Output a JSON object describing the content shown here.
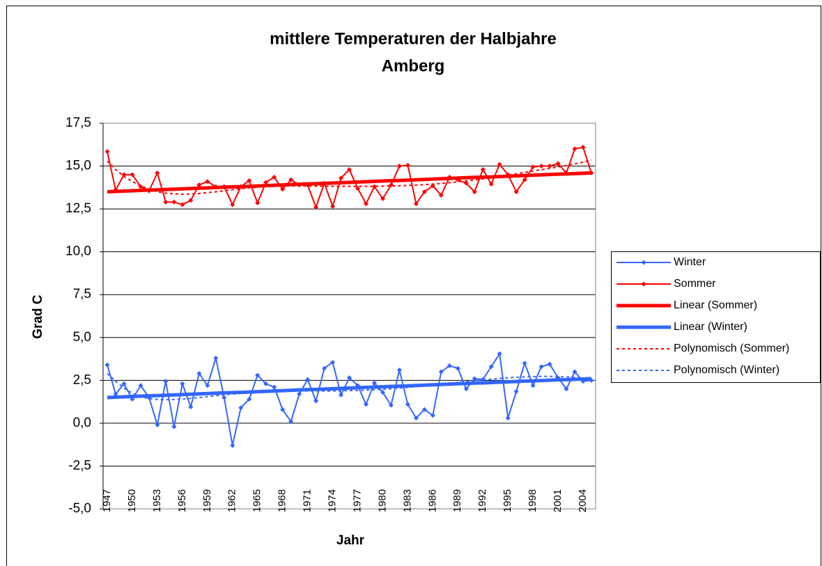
{
  "chart_data": {
    "type": "line",
    "title": "mittlere Temperaturen der Halbjahre",
    "subtitle": "Amberg",
    "x_label": "Jahr",
    "y_label": "Grad C",
    "categories": [
      "1947",
      null,
      null,
      "1950",
      null,
      null,
      "1953",
      null,
      null,
      "1956",
      null,
      null,
      "1959",
      null,
      null,
      "1962",
      null,
      null,
      "1965",
      null,
      null,
      "1968",
      null,
      null,
      "1971",
      null,
      null,
      "1974",
      null,
      null,
      "1977",
      null,
      null,
      "1980",
      null,
      null,
      "1983",
      null,
      null,
      "1986",
      null,
      null,
      "1989",
      null,
      null,
      "1992",
      null,
      null,
      "1995",
      null,
      null,
      "1998",
      null,
      null,
      "2001",
      null,
      null,
      "2004",
      null
    ],
    "ylim": [
      -5,
      17.5
    ],
    "yticks": [
      {
        "value": -5,
        "label": "-5,0"
      },
      {
        "value": -2.5,
        "label": "-2,5"
      },
      {
        "value": 0,
        "label": "0,0"
      },
      {
        "value": 2.5,
        "label": "2,5"
      },
      {
        "value": 5,
        "label": "5,0"
      },
      {
        "value": 7.5,
        "label": "7,5"
      },
      {
        "value": 10,
        "label": "10,0"
      },
      {
        "value": 12.5,
        "label": "12,5"
      },
      {
        "value": 15,
        "label": "15,0"
      },
      {
        "value": 17.5,
        "label": "17,5"
      }
    ],
    "grid": true,
    "legend": "right",
    "series": [
      {
        "name": "Winter",
        "color": "#3366ff",
        "width": 2,
        "markers": true,
        "dash": false,
        "values": [
          3.4,
          1.7,
          2.3,
          1.4,
          2.2,
          1.5,
          -0.1,
          2.45,
          -0.2,
          2.3,
          0.95,
          2.9,
          2.2,
          3.8,
          1.5,
          -1.3,
          0.9,
          1.4,
          2.8,
          2.3,
          2.1,
          0.8,
          0.1,
          1.7,
          2.55,
          1.3,
          3.2,
          3.55,
          1.65,
          2.65,
          2.2,
          1.1,
          2.35,
          1.8,
          1.05,
          3.1,
          1.1,
          0.3,
          0.8,
          0.45,
          3.0,
          3.35,
          3.2,
          2.0,
          2.6,
          2.55,
          3.3,
          4.05,
          0.3,
          1.85,
          3.5,
          2.2,
          3.3,
          3.45,
          2.65,
          2.0,
          3.0,
          2.45,
          2.5
        ]
      },
      {
        "name": "Sommer",
        "color": "#ff0000",
        "width": 2,
        "markers": true,
        "dash": false,
        "values": [
          15.85,
          13.6,
          14.5,
          14.5,
          13.8,
          13.55,
          14.6,
          12.9,
          12.9,
          12.75,
          13.0,
          13.9,
          14.1,
          13.8,
          13.8,
          12.75,
          13.8,
          14.15,
          12.85,
          14.05,
          14.35,
          13.65,
          14.2,
          13.9,
          13.9,
          12.6,
          14.0,
          12.65,
          14.3,
          14.8,
          13.7,
          12.8,
          13.8,
          13.1,
          13.9,
          15.0,
          15.05,
          12.8,
          13.5,
          13.85,
          13.3,
          14.35,
          14.2,
          14.0,
          13.5,
          14.8,
          13.95,
          15.1,
          14.5,
          13.5,
          14.2,
          14.95,
          15.0,
          15.0,
          15.15,
          14.6,
          16.0,
          16.1,
          14.6
        ]
      },
      {
        "name": "Linear (Sommer)",
        "color": "#ff0000",
        "width": 5,
        "markers": false,
        "dash": false,
        "values": [
          13.5,
          13.52,
          13.54,
          13.56,
          13.58,
          13.6,
          13.61,
          13.63,
          13.65,
          13.67,
          13.69,
          13.71,
          13.73,
          13.75,
          13.77,
          13.79,
          13.8,
          13.82,
          13.84,
          13.86,
          13.88,
          13.9,
          13.92,
          13.94,
          13.96,
          13.97,
          13.99,
          14.01,
          14.03,
          14.05,
          14.07,
          14.09,
          14.11,
          14.13,
          14.15,
          14.16,
          14.18,
          14.2,
          14.22,
          14.24,
          14.26,
          14.28,
          14.3,
          14.32,
          14.34,
          14.35,
          14.37,
          14.39,
          14.41,
          14.43,
          14.45,
          14.47,
          14.49,
          14.51,
          14.53,
          14.54,
          14.56,
          14.58,
          14.6
        ]
      },
      {
        "name": "Linear (Winter)",
        "color": "#3366ff",
        "width": 5,
        "markers": false,
        "dash": false,
        "values": [
          1.5,
          1.52,
          1.54,
          1.56,
          1.58,
          1.6,
          1.61,
          1.63,
          1.65,
          1.67,
          1.69,
          1.71,
          1.73,
          1.75,
          1.77,
          1.79,
          1.8,
          1.82,
          1.84,
          1.86,
          1.88,
          1.9,
          1.92,
          1.94,
          1.96,
          1.97,
          1.99,
          2.01,
          2.03,
          2.05,
          2.07,
          2.09,
          2.11,
          2.13,
          2.15,
          2.16,
          2.18,
          2.2,
          2.22,
          2.24,
          2.26,
          2.28,
          2.3,
          2.32,
          2.34,
          2.35,
          2.37,
          2.39,
          2.41,
          2.43,
          2.45,
          2.47,
          2.49,
          2.51,
          2.53,
          2.54,
          2.56,
          2.58,
          2.6
        ]
      },
      {
        "name": "Polynomisch (Sommer)",
        "color": "#ff0000",
        "width": 2,
        "markers": false,
        "dash": true,
        "values": [
          15.3,
          14.8,
          14.4,
          14.1,
          13.85,
          13.65,
          13.5,
          13.42,
          13.38,
          13.36,
          13.37,
          13.4,
          13.45,
          13.5,
          13.56,
          13.62,
          13.68,
          13.73,
          13.77,
          13.8,
          13.82,
          13.83,
          13.84,
          13.84,
          13.84,
          13.83,
          13.83,
          13.82,
          13.82,
          13.82,
          13.82,
          13.82,
          13.82,
          13.83,
          13.84,
          13.85,
          13.87,
          13.89,
          13.92,
          13.95,
          13.99,
          14.03,
          14.08,
          14.13,
          14.19,
          14.25,
          14.32,
          14.39,
          14.47,
          14.55,
          14.63,
          14.71,
          14.79,
          14.87,
          14.95,
          15.04,
          15.13,
          15.23,
          15.35
        ]
      },
      {
        "name": "Polynomisch (Winter)",
        "color": "#3366ff",
        "width": 2,
        "markers": false,
        "dash": true,
        "values": [
          2.9,
          2.45,
          2.05,
          1.75,
          1.55,
          1.43,
          1.38,
          1.37,
          1.38,
          1.41,
          1.45,
          1.5,
          1.55,
          1.6,
          1.65,
          1.7,
          1.74,
          1.78,
          1.81,
          1.84,
          1.86,
          1.87,
          1.88,
          1.88,
          1.88,
          1.88,
          1.88,
          1.88,
          1.89,
          1.9,
          1.91,
          1.93,
          1.95,
          1.98,
          2.01,
          2.05,
          2.09,
          2.13,
          2.18,
          2.23,
          2.28,
          2.33,
          2.38,
          2.43,
          2.48,
          2.53,
          2.57,
          2.61,
          2.65,
          2.68,
          2.7,
          2.72,
          2.73,
          2.73,
          2.72,
          2.7,
          2.67,
          2.63,
          2.58
        ]
      }
    ]
  }
}
